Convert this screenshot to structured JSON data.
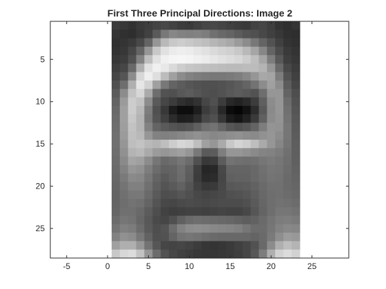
{
  "chart_data": {
    "type": "heatmap",
    "title": "First Three Principal Directions: Image 2",
    "xlabel": "",
    "ylabel": "",
    "xlim": [
      -7,
      29.5
    ],
    "ylim": [
      28.5,
      0.5
    ],
    "x_ticks": [
      -5,
      0,
      5,
      10,
      15,
      20,
      25
    ],
    "y_ticks": [
      5,
      10,
      15,
      20,
      25
    ],
    "colormap": "gray",
    "image_extent": {
      "x": [
        0.5,
        23.5
      ],
      "y": [
        0.5,
        28.5
      ]
    },
    "grid": false,
    "legend": "none",
    "rows": 28,
    "cols": 23,
    "values": [
      [
        60,
        55,
        50,
        58,
        62,
        68,
        72,
        66,
        60,
        58,
        64,
        70,
        72,
        68,
        64,
        60,
        58,
        66,
        70,
        62,
        50,
        46,
        52
      ],
      [
        52,
        48,
        46,
        55,
        65,
        90,
        120,
        135,
        130,
        128,
        130,
        125,
        112,
        105,
        100,
        92,
        84,
        80,
        72,
        64,
        56,
        48,
        46
      ],
      [
        48,
        52,
        58,
        72,
        100,
        150,
        185,
        200,
        205,
        200,
        195,
        190,
        182,
        175,
        168,
        155,
        140,
        120,
        100,
        82,
        64,
        52,
        48
      ],
      [
        50,
        55,
        70,
        100,
        150,
        200,
        225,
        235,
        238,
        236,
        230,
        225,
        218,
        212,
        208,
        200,
        185,
        165,
        135,
        100,
        75,
        58,
        52
      ],
      [
        55,
        60,
        80,
        130,
        190,
        225,
        240,
        245,
        246,
        244,
        240,
        236,
        230,
        225,
        220,
        215,
        205,
        190,
        165,
        125,
        88,
        62,
        55
      ],
      [
        62,
        70,
        105,
        175,
        225,
        240,
        232,
        218,
        205,
        198,
        195,
        192,
        190,
        188,
        186,
        186,
        188,
        188,
        180,
        150,
        105,
        72,
        60
      ],
      [
        70,
        85,
        140,
        215,
        238,
        222,
        188,
        160,
        140,
        130,
        125,
        122,
        120,
        120,
        122,
        126,
        135,
        150,
        168,
        165,
        125,
        82,
        65
      ],
      [
        80,
        110,
        175,
        230,
        210,
        160,
        120,
        100,
        92,
        86,
        82,
        80,
        80,
        82,
        86,
        92,
        100,
        115,
        140,
        160,
        140,
        92,
        70
      ],
      [
        92,
        140,
        195,
        215,
        170,
        110,
        82,
        80,
        88,
        92,
        86,
        80,
        78,
        82,
        88,
        92,
        88,
        82,
        110,
        150,
        150,
        100,
        78
      ],
      [
        100,
        155,
        205,
        195,
        140,
        90,
        70,
        60,
        48,
        42,
        50,
        70,
        80,
        60,
        40,
        34,
        42,
        60,
        95,
        140,
        150,
        108,
        82
      ],
      [
        105,
        160,
        205,
        185,
        125,
        80,
        56,
        28,
        14,
        14,
        30,
        60,
        72,
        40,
        12,
        6,
        18,
        44,
        88,
        138,
        150,
        112,
        85
      ],
      [
        108,
        160,
        200,
        180,
        120,
        84,
        64,
        44,
        30,
        32,
        46,
        72,
        80,
        54,
        28,
        20,
        34,
        58,
        96,
        140,
        148,
        115,
        88
      ],
      [
        110,
        158,
        195,
        180,
        130,
        100,
        90,
        84,
        80,
        84,
        96,
        110,
        115,
        100,
        86,
        80,
        86,
        100,
        125,
        148,
        146,
        118,
        90
      ],
      [
        112,
        155,
        192,
        185,
        150,
        130,
        128,
        130,
        135,
        140,
        145,
        140,
        135,
        138,
        142,
        145,
        140,
        138,
        145,
        150,
        140,
        118,
        92
      ],
      [
        112,
        150,
        190,
        195,
        185,
        180,
        190,
        205,
        215,
        210,
        190,
        160,
        150,
        170,
        200,
        212,
        205,
        190,
        170,
        150,
        134,
        116,
        94
      ],
      [
        110,
        145,
        180,
        185,
        170,
        155,
        150,
        155,
        160,
        150,
        120,
        90,
        92,
        126,
        150,
        150,
        145,
        138,
        132,
        130,
        124,
        112,
        95
      ],
      [
        108,
        138,
        165,
        160,
        140,
        118,
        105,
        110,
        118,
        108,
        80,
        56,
        60,
        92,
        115,
        112,
        110,
        112,
        118,
        122,
        118,
        110,
        96
      ],
      [
        106,
        130,
        150,
        145,
        125,
        108,
        98,
        100,
        110,
        95,
        62,
        38,
        40,
        72,
        100,
        100,
        100,
        104,
        112,
        118,
        116,
        108,
        98
      ],
      [
        104,
        122,
        138,
        135,
        118,
        100,
        90,
        98,
        108,
        92,
        60,
        42,
        44,
        70,
        96,
        98,
        98,
        104,
        110,
        116,
        114,
        106,
        100
      ],
      [
        102,
        116,
        128,
        128,
        112,
        95,
        84,
        90,
        98,
        85,
        66,
        56,
        58,
        72,
        88,
        90,
        92,
        98,
        106,
        112,
        112,
        106,
        102
      ],
      [
        100,
        112,
        120,
        120,
        106,
        90,
        78,
        80,
        86,
        80,
        72,
        68,
        70,
        74,
        80,
        82,
        86,
        94,
        104,
        110,
        112,
        108,
        104
      ],
      [
        100,
        110,
        115,
        112,
        100,
        84,
        72,
        70,
        74,
        76,
        74,
        72,
        74,
        76,
        76,
        76,
        80,
        90,
        102,
        110,
        114,
        112,
        108
      ],
      [
        102,
        112,
        112,
        105,
        92,
        78,
        66,
        62,
        64,
        66,
        66,
        64,
        66,
        68,
        66,
        66,
        72,
        86,
        100,
        110,
        118,
        118,
        114
      ],
      [
        108,
        118,
        115,
        102,
        88,
        74,
        70,
        80,
        96,
        106,
        110,
        108,
        106,
        104,
        102,
        98,
        94,
        98,
        106,
        116,
        124,
        126,
        122
      ],
      [
        116,
        128,
        124,
        108,
        90,
        78,
        84,
        108,
        130,
        140,
        142,
        140,
        136,
        134,
        132,
        128,
        118,
        108,
        108,
        118,
        130,
        136,
        134
      ],
      [
        130,
        145,
        140,
        120,
        98,
        80,
        82,
        100,
        115,
        118,
        115,
        110,
        106,
        104,
        104,
        104,
        104,
        100,
        106,
        122,
        142,
        156,
        152
      ],
      [
        160,
        175,
        175,
        150,
        115,
        86,
        70,
        68,
        70,
        66,
        60,
        54,
        52,
        54,
        58,
        64,
        70,
        82,
        105,
        140,
        175,
        190,
        180
      ],
      [
        200,
        215,
        220,
        195,
        150,
        108,
        82,
        70,
        64,
        60,
        56,
        54,
        54,
        56,
        58,
        62,
        70,
        88,
        125,
        175,
        210,
        220,
        210
      ]
    ]
  }
}
